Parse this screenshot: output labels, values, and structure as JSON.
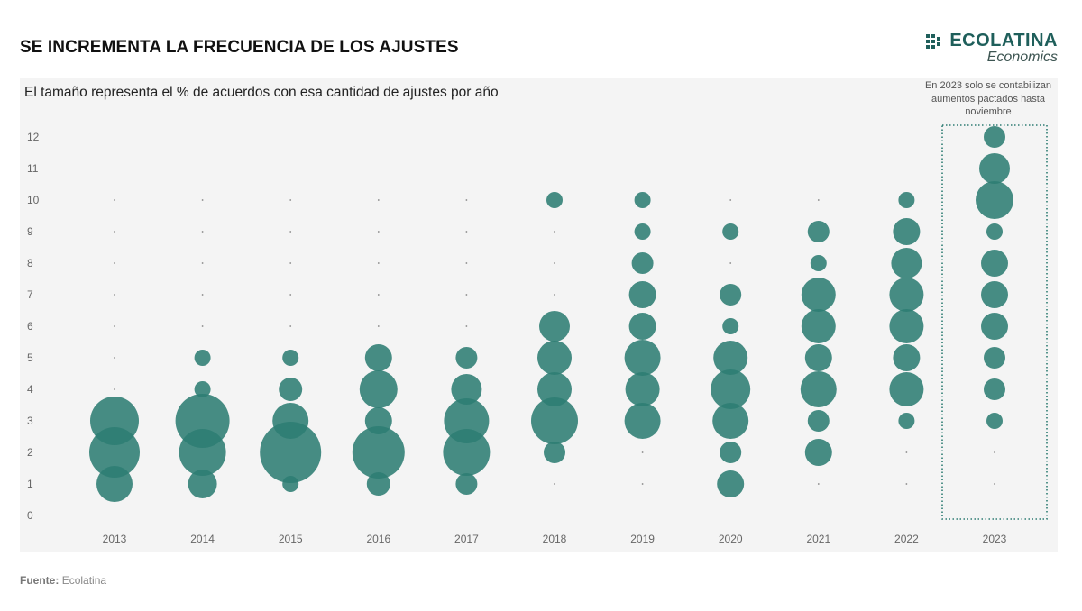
{
  "title": "SE INCREMENTA LA FRECUENCIA DE LOS AJUSTES",
  "brand": {
    "name": "ECOLATINA",
    "sub": "Economics",
    "icon": "ecolatina-logo-icon",
    "color": "#1f5f5b"
  },
  "source": {
    "label": "Fuente:",
    "value": "Ecolatina"
  },
  "chart_data": {
    "type": "scatter",
    "subtitle": "El tamaño representa el % de acuerdos con esa cantidad de ajustes por año",
    "annotation": "En 2023 solo se contabilizan aumentos pactados hasta noviembre",
    "highlight_category": "2023",
    "x": [
      "2013",
      "2014",
      "2015",
      "2016",
      "2017",
      "2018",
      "2019",
      "2020",
      "2021",
      "2022",
      "2023"
    ],
    "yticks": [
      0,
      1,
      2,
      3,
      4,
      5,
      6,
      7,
      8,
      9,
      10,
      11,
      12
    ],
    "ylim": [
      0,
      12
    ],
    "color": "#2e7d73",
    "grid": false,
    "size_meaning": "share of agreements (relative)",
    "points": [
      {
        "x": "2013",
        "y": 1,
        "size": 20
      },
      {
        "x": "2013",
        "y": 2,
        "size": 28
      },
      {
        "x": "2013",
        "y": 3,
        "size": 27
      },
      {
        "x": "2014",
        "y": 1,
        "size": 16
      },
      {
        "x": "2014",
        "y": 2,
        "size": 26
      },
      {
        "x": "2014",
        "y": 3,
        "size": 30
      },
      {
        "x": "2014",
        "y": 4,
        "size": 9
      },
      {
        "x": "2014",
        "y": 5,
        "size": 9
      },
      {
        "x": "2015",
        "y": 1,
        "size": 9
      },
      {
        "x": "2015",
        "y": 2,
        "size": 34
      },
      {
        "x": "2015",
        "y": 3,
        "size": 20
      },
      {
        "x": "2015",
        "y": 4,
        "size": 13
      },
      {
        "x": "2015",
        "y": 5,
        "size": 9
      },
      {
        "x": "2016",
        "y": 1,
        "size": 13
      },
      {
        "x": "2016",
        "y": 2,
        "size": 29
      },
      {
        "x": "2016",
        "y": 3,
        "size": 15
      },
      {
        "x": "2016",
        "y": 4,
        "size": 21
      },
      {
        "x": "2016",
        "y": 5,
        "size": 15
      },
      {
        "x": "2017",
        "y": 1,
        "size": 12
      },
      {
        "x": "2017",
        "y": 2,
        "size": 26
      },
      {
        "x": "2017",
        "y": 3,
        "size": 25
      },
      {
        "x": "2017",
        "y": 4,
        "size": 17
      },
      {
        "x": "2017",
        "y": 5,
        "size": 12
      },
      {
        "x": "2018",
        "y": 2,
        "size": 12
      },
      {
        "x": "2018",
        "y": 3,
        "size": 26
      },
      {
        "x": "2018",
        "y": 4,
        "size": 19
      },
      {
        "x": "2018",
        "y": 5,
        "size": 19
      },
      {
        "x": "2018",
        "y": 6,
        "size": 17
      },
      {
        "x": "2018",
        "y": 10,
        "size": 9
      },
      {
        "x": "2019",
        "y": 3,
        "size": 20
      },
      {
        "x": "2019",
        "y": 4,
        "size": 19
      },
      {
        "x": "2019",
        "y": 5,
        "size": 20
      },
      {
        "x": "2019",
        "y": 6,
        "size": 15
      },
      {
        "x": "2019",
        "y": 7,
        "size": 15
      },
      {
        "x": "2019",
        "y": 8,
        "size": 12
      },
      {
        "x": "2019",
        "y": 9,
        "size": 9
      },
      {
        "x": "2019",
        "y": 10,
        "size": 9
      },
      {
        "x": "2020",
        "y": 1,
        "size": 15
      },
      {
        "x": "2020",
        "y": 2,
        "size": 12
      },
      {
        "x": "2020",
        "y": 3,
        "size": 20
      },
      {
        "x": "2020",
        "y": 4,
        "size": 22
      },
      {
        "x": "2020",
        "y": 5,
        "size": 19
      },
      {
        "x": "2020",
        "y": 6,
        "size": 9
      },
      {
        "x": "2020",
        "y": 7,
        "size": 12
      },
      {
        "x": "2020",
        "y": 9,
        "size": 9
      },
      {
        "x": "2021",
        "y": 2,
        "size": 15
      },
      {
        "x": "2021",
        "y": 3,
        "size": 12
      },
      {
        "x": "2021",
        "y": 4,
        "size": 20
      },
      {
        "x": "2021",
        "y": 5,
        "size": 15
      },
      {
        "x": "2021",
        "y": 6,
        "size": 19
      },
      {
        "x": "2021",
        "y": 7,
        "size": 19
      },
      {
        "x": "2021",
        "y": 8,
        "size": 9
      },
      {
        "x": "2021",
        "y": 9,
        "size": 12
      },
      {
        "x": "2022",
        "y": 3,
        "size": 9
      },
      {
        "x": "2022",
        "y": 4,
        "size": 19
      },
      {
        "x": "2022",
        "y": 5,
        "size": 15
      },
      {
        "x": "2022",
        "y": 6,
        "size": 19
      },
      {
        "x": "2022",
        "y": 7,
        "size": 19
      },
      {
        "x": "2022",
        "y": 8,
        "size": 17
      },
      {
        "x": "2022",
        "y": 9,
        "size": 15
      },
      {
        "x": "2022",
        "y": 10,
        "size": 9
      },
      {
        "x": "2023",
        "y": 3,
        "size": 9
      },
      {
        "x": "2023",
        "y": 4,
        "size": 12
      },
      {
        "x": "2023",
        "y": 5,
        "size": 12
      },
      {
        "x": "2023",
        "y": 6,
        "size": 15
      },
      {
        "x": "2023",
        "y": 7,
        "size": 15
      },
      {
        "x": "2023",
        "y": 8,
        "size": 15
      },
      {
        "x": "2023",
        "y": 9,
        "size": 9
      },
      {
        "x": "2023",
        "y": 10,
        "size": 21
      },
      {
        "x": "2023",
        "y": 11,
        "size": 17
      },
      {
        "x": "2023",
        "y": 12,
        "size": 12
      }
    ]
  }
}
